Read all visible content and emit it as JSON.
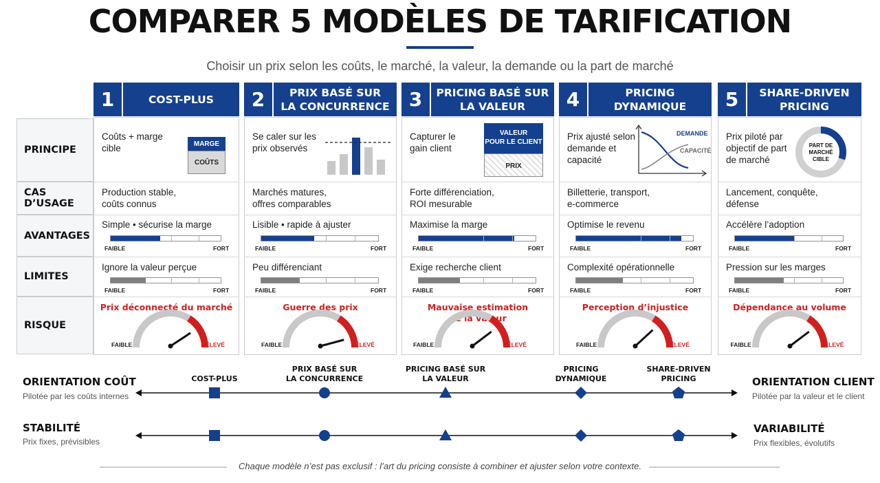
{
  "title": "COMPARER 5 MODÈLES DE TARIFICATION",
  "subtitle": "Choisir un prix selon les coûts, le marché, la valeur, la demande ou la part de marché",
  "rows": {
    "principe": "PRINCIPE",
    "cas": "CAS D’USAGE",
    "avantages": "AVANTAGES",
    "limites": "LIMITES",
    "risque": "RISQUE"
  },
  "scale": {
    "faible": "FAIBLE",
    "fort": "FORT",
    "eleve": "ÉLEVÉ"
  },
  "colors": {
    "navy": "#14408e",
    "red": "#d11f1f",
    "gray": "#7f7f7f"
  },
  "columns": [
    {
      "num": "1",
      "title": "COST-PLUS",
      "principe": "Coûts + marge cible",
      "cas": "Production stable,\ncoûts connus",
      "avantages": "Simple • sécurise la marge",
      "avantages_level": 0.45,
      "limites": "Ignore la valeur perçue",
      "limites_level": 0.32,
      "risque": "Prix déconnecté du marché",
      "risk_level": 0.8,
      "visual": {
        "marge": "MARGE",
        "couts": "COÛTS"
      }
    },
    {
      "num": "2",
      "title": "PRIX BASÉ SUR\nLA CONCURRENCE",
      "principe": "Se caler sur les\nprix observés",
      "cas": "Marchés matures,\noffres comparables",
      "avantages": "Lisible • rapide à ajuster",
      "avantages_level": 0.45,
      "limites": "Peu différenciant",
      "limites_level": 0.33,
      "risque": "Guerre des prix",
      "risk_level": 0.9
    },
    {
      "num": "3",
      "title": "PRICING BASÉ SUR\nLA VALEUR",
      "principe": "Capturer le\ngain client",
      "cas": "Forte différenciation,\nROI mesurable",
      "avantages": "Maximise la marge",
      "avantages_level": 0.82,
      "limites": "Exige recherche client",
      "limites_level": 0.35,
      "risque": "Mauvaise estimation\nde la valeur",
      "risk_level": 0.78,
      "visual": {
        "valeur": "VALEUR\nPOUR LE CLIENT",
        "prix": "PRIX"
      }
    },
    {
      "num": "4",
      "title": "PRICING\nDYNAMIQUE",
      "principe": "Prix ajusté selon\ndemande et\ncapacité",
      "cas": "Billetterie, transport,\ne-commerce",
      "avantages": "Optimise le revenu",
      "avantages_level": 0.9,
      "limites": "Complexité opérationnelle",
      "limites_level": 0.4,
      "risque": "Perception d’injustice",
      "risk_level": 0.75,
      "visual": {
        "demande": "DEMANDE",
        "capacite": "CAPACITÉ"
      }
    },
    {
      "num": "5",
      "title": "SHARE-DRIVEN\nPRICING",
      "principe": "Prix piloté par\nobjectif de part\nde marché",
      "cas": "Lancement, conquête,\ndéfense",
      "avantages": "Accélère l’adoption",
      "avantages_level": 0.55,
      "limites": "Pression sur les marges",
      "limites_level": 0.45,
      "risque": "Dépendance au volume",
      "risk_level": 0.78,
      "visual": {
        "part": "PART DE\nMARCHÉ\nCIBLE",
        "share": 0.3
      }
    }
  ],
  "axis1": {
    "left_title": "ORIENTATION COÛT",
    "left_sub": "Pilotée par les coûts internes",
    "right_title": "ORIENTATION CLIENT",
    "right_sub": "Pilotée par la valeur et le client"
  },
  "axis2": {
    "left_title": "STABILITÉ",
    "left_sub": "Prix fixes, prévisibles",
    "right_title": "VARIABILITÉ",
    "right_sub": "Prix flexibles, évolutifs"
  },
  "axis_labels": [
    "COST-PLUS",
    "PRIX BASÉ SUR\nLA CONCURRENCE",
    "PRICING BASÉ SUR\nLA VALEUR",
    "PRICING\nDYNAMIQUE",
    "SHARE-DRIVEN\nPRICING"
  ],
  "footer": "Chaque modèle n’est pas exclusif : l’art du pricing consiste à combiner et ajuster selon votre contexte."
}
